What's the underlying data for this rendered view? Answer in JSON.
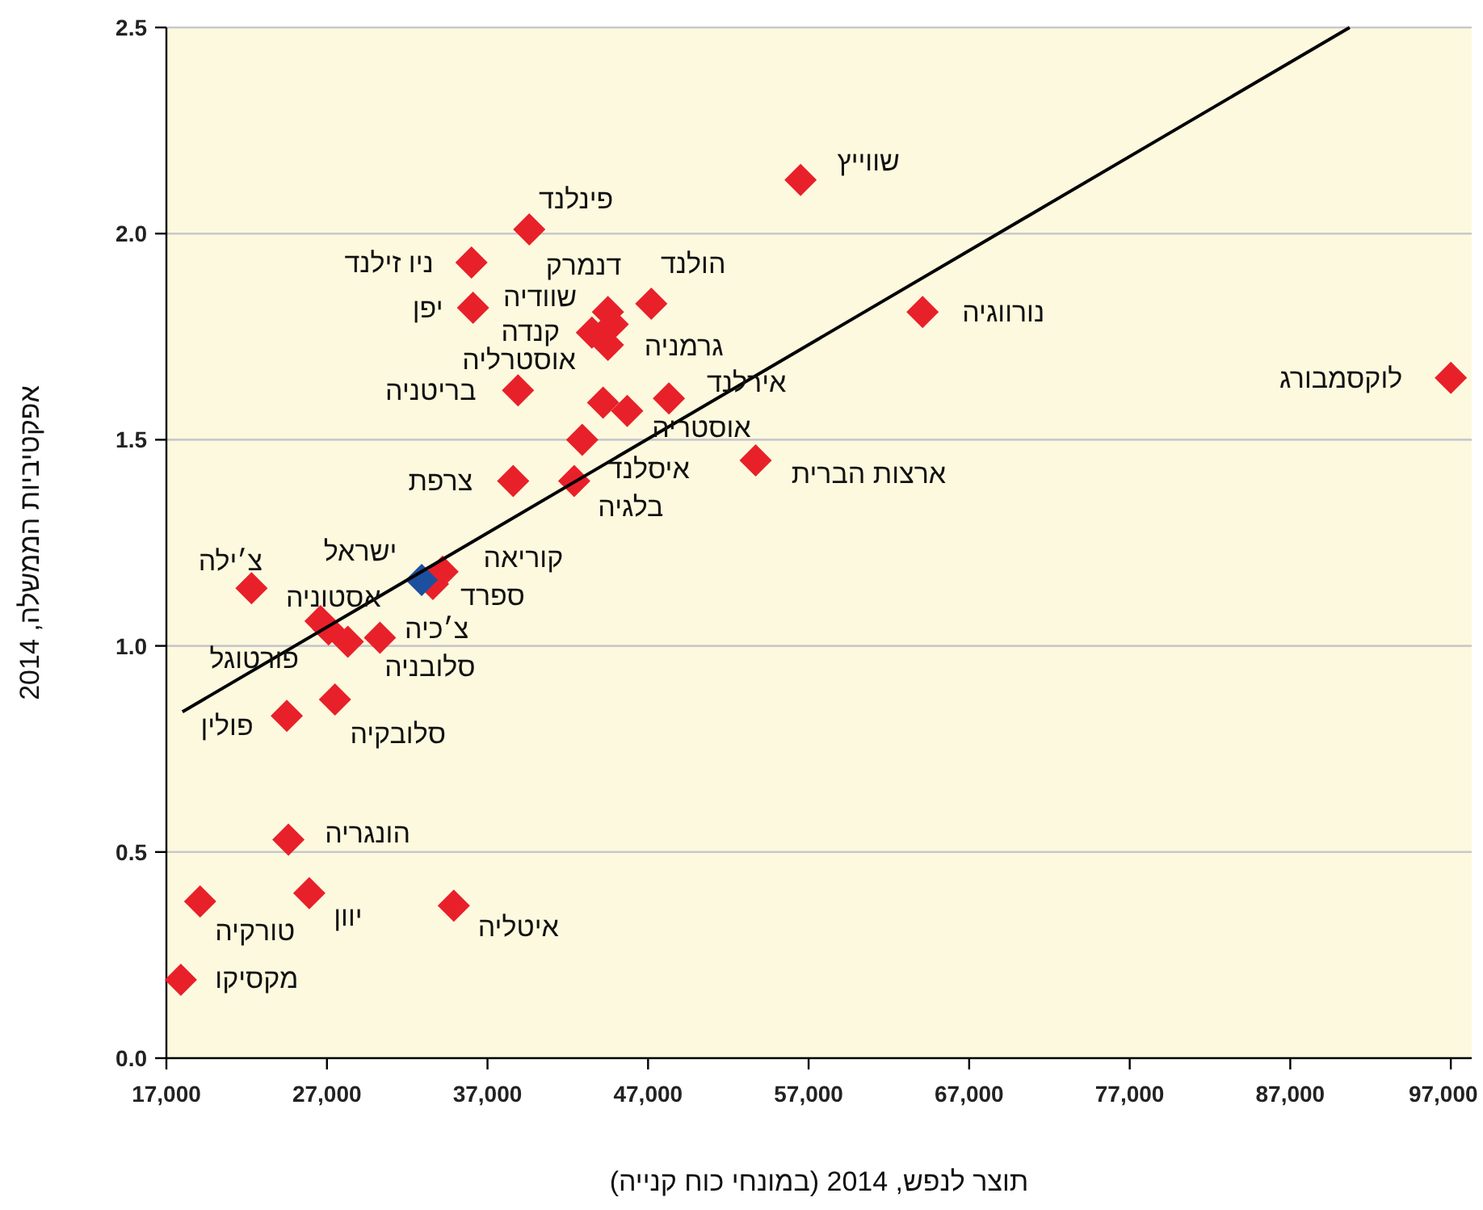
{
  "chart_data": {
    "type": "scatter",
    "xlabel": "תוצר לנפש, 2014 (במונחי כוח קנייה)",
    "ylabel": "אפקטיביות הממשלה, 2014",
    "xlim": [
      17000,
      98300
    ],
    "ylim": [
      0,
      2.5
    ],
    "xticks": [
      {
        "value": 17000,
        "label": "17,000"
      },
      {
        "value": 27000,
        "label": "27,000"
      },
      {
        "value": 37000,
        "label": "37,000"
      },
      {
        "value": 47000,
        "label": "47,000"
      },
      {
        "value": 57000,
        "label": "57,000"
      },
      {
        "value": 67000,
        "label": "67,000"
      },
      {
        "value": 77000,
        "label": "77,000"
      },
      {
        "value": 87000,
        "label": "87,000"
      },
      {
        "value": 97000,
        "label": "97,000"
      }
    ],
    "yticks": [
      {
        "value": 0,
        "label": "0.0"
      },
      {
        "value": 0.5,
        "label": "0.5"
      },
      {
        "value": 1,
        "label": "1.0"
      },
      {
        "value": 1.5,
        "label": "1.5"
      },
      {
        "value": 2,
        "label": "2.0"
      },
      {
        "value": 2.5,
        "label": "2.5"
      }
    ],
    "grid": "y",
    "marker": "diamond",
    "series": [
      {
        "color": "#e8202a",
        "x": [
          97000,
          64100,
          56500,
          53700,
          39600,
          36000,
          36100,
          44500,
          47200,
          44800,
          43500,
          44500,
          44200,
          38900,
          48300,
          45700,
          38600,
          42900,
          42400,
          34200,
          33600,
          22300,
          26600,
          27100,
          28300,
          30300,
          27500,
          24500,
          24600,
          25900,
          19100,
          17900,
          34900
        ],
        "values": [
          1.65,
          1.81,
          2.13,
          1.45,
          2.01,
          1.93,
          1.82,
          1.81,
          1.83,
          1.78,
          1.76,
          1.73,
          1.59,
          1.62,
          1.6,
          1.57,
          1.4,
          1.5,
          1.4,
          1.18,
          1.15,
          1.14,
          1.06,
          1.04,
          1.01,
          1.02,
          0.87,
          0.83,
          0.53,
          0.4,
          0.38,
          0.19,
          0.37
        ]
      },
      {
        "color": "#1d4f9f",
        "x": [
          32900
        ],
        "values": [
          1.16
        ]
      },
      {
        "type": "line",
        "color": "#000000",
        "marker": "none",
        "x": [
          18000,
          90700
        ],
        "values": [
          0.84,
          2.5
        ]
      }
    ],
    "annotations": [
      {
        "text": "לוקסמבורג",
        "x": 97000,
        "y": 1.65
      },
      {
        "text": "נורווגיה",
        "x": 64100,
        "y": 1.81
      },
      {
        "text": "שווייץ",
        "x": 56500,
        "y": 2.13
      },
      {
        "text": "ארצות הברית",
        "x": 53700,
        "y": 1.45
      },
      {
        "text": "פינלנד",
        "x": 39600,
        "y": 2.01
      },
      {
        "text": "ניו זילנד",
        "x": 36000,
        "y": 1.93
      },
      {
        "text": "יפן",
        "x": 36100,
        "y": 1.82
      },
      {
        "text": "דנמרק",
        "x": 44500,
        "y": 1.81
      },
      {
        "text": "הולנד",
        "x": 47200,
        "y": 1.83
      },
      {
        "text": "שוודיה",
        "x": 44800,
        "y": 1.78
      },
      {
        "text": "קנדה",
        "x": 43500,
        "y": 1.76
      },
      {
        "text": "אוסטרליה",
        "x": 44500,
        "y": 1.73
      },
      {
        "text": "גרמניה",
        "x": 44200,
        "y": 1.59
      },
      {
        "text": "בריטניה",
        "x": 38900,
        "y": 1.62
      },
      {
        "text": "אירלנד",
        "x": 48300,
        "y": 1.6
      },
      {
        "text": "אוסטריה",
        "x": 45700,
        "y": 1.57
      },
      {
        "text": "צרפת",
        "x": 38600,
        "y": 1.4
      },
      {
        "text": "איסלנד",
        "x": 42900,
        "y": 1.5
      },
      {
        "text": "בלגיה",
        "x": 42400,
        "y": 1.4
      },
      {
        "text": "קוריאה",
        "x": 34200,
        "y": 1.18
      },
      {
        "text": "ישראל",
        "x": 32900,
        "y": 1.16
      },
      {
        "text": "ספרד",
        "x": 33600,
        "y": 1.15
      },
      {
        "text": "צ׳ילה",
        "x": 22300,
        "y": 1.14
      },
      {
        "text": "אסטוניה",
        "x": 26600,
        "y": 1.06
      },
      {
        "text": "פורטוגל",
        "x": 27100,
        "y": 1.04
      },
      {
        "text": "צ׳כיה",
        "x": 28300,
        "y": 1.01
      },
      {
        "text": "סלובניה",
        "x": 30300,
        "y": 1.02
      },
      {
        "text": "סלובקיה",
        "x": 27500,
        "y": 0.87
      },
      {
        "text": "פולין",
        "x": 24500,
        "y": 0.83
      },
      {
        "text": "הונגריה",
        "x": 24600,
        "y": 0.53
      },
      {
        "text": "יוון",
        "x": 25900,
        "y": 0.4
      },
      {
        "text": "טורקיה",
        "x": 19100,
        "y": 0.38
      },
      {
        "text": "מקסיקו",
        "x": 17900,
        "y": 0.19
      },
      {
        "text": "איטליה",
        "x": 34900,
        "y": 0.37
      }
    ]
  }
}
